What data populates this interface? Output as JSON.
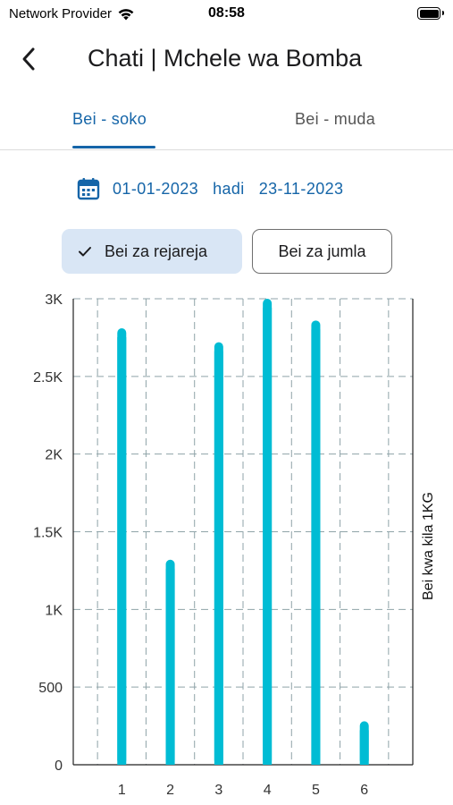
{
  "status_bar": {
    "carrier": "Network Provider",
    "time": "08:58"
  },
  "header": {
    "title": "Chati | Mchele wa Bomba",
    "back_icon": "chevron-left-icon"
  },
  "tabs": [
    {
      "label": "Bei - soko",
      "selected": true
    },
    {
      "label": "Bei - muda",
      "selected": false
    }
  ],
  "date_range": {
    "icon": "calendar-icon",
    "start": "01-01-2023",
    "separator": "hadi",
    "end": "23-11-2023"
  },
  "filters": {
    "retail_label": "Bei za rejareja",
    "retail_selected": true,
    "wholesale_label": "Bei za jumla",
    "wholesale_selected": false
  },
  "colors": {
    "accent": "#1565a8",
    "bar": "#00bcd4",
    "chip_selected_bg": "#d9e6f5",
    "grid": "#8fa3a8"
  },
  "chart_data": {
    "type": "bar",
    "categories": [
      "1",
      "2",
      "3",
      "4",
      "5",
      "6"
    ],
    "values": [
      2810,
      1320,
      2720,
      3050,
      2860,
      280
    ],
    "ylabel": "Bei kwa kila 1KG",
    "ylim": [
      0,
      3000
    ],
    "yticks": [
      0,
      500,
      1000,
      1500,
      2000,
      2500,
      3000
    ],
    "ytick_labels": [
      "0",
      "500",
      "1K",
      "1.5K",
      "2K",
      "2.5K",
      "3K"
    ],
    "ylabel_position": "right",
    "grid": true
  }
}
